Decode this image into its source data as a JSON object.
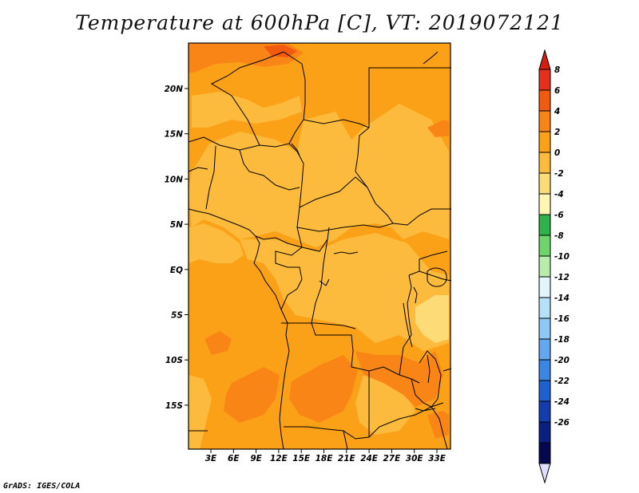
{
  "title": "Temperature at 600hPa [C], VT: 2019072121",
  "footer": "GrADS: IGES/COLA",
  "map": {
    "lat_ticks": [
      "20N",
      "15N",
      "10N",
      "5N",
      "EQ",
      "5S",
      "10S",
      "15S"
    ],
    "lon_ticks": [
      "3E",
      "6E",
      "9E",
      "12E",
      "15E",
      "18E",
      "21E",
      "24E",
      "27E",
      "30E",
      "33E"
    ]
  },
  "colorbar": {
    "labels": [
      "8",
      "6",
      "4",
      "2",
      "0",
      "-2",
      "-4",
      "-6",
      "-8",
      "-10",
      "-12",
      "-14",
      "-16",
      "-18",
      "-20",
      "-22",
      "-24",
      "-26"
    ],
    "colors": [
      "#e6301d",
      "#f25a10",
      "#f98516",
      "#fba118",
      "#fcbb3c",
      "#fddc78",
      "#fff6b4",
      "#2fb24b",
      "#6fd56a",
      "#b7ecac",
      "#e1f5fb",
      "#b7e1f9",
      "#8ec8f4",
      "#63a8ee",
      "#3b86e3",
      "#1f60d1",
      "#143cad",
      "#0b1e82",
      "#06084f"
    ],
    "top_color": "#d41e10",
    "bottom_color": "#e0deff"
  },
  "field_colors": {
    "base": "#fba118",
    "light": "#fcbb3c",
    "pale": "#fddc78",
    "warm": "#f98516",
    "hot": "#f25a10"
  }
}
